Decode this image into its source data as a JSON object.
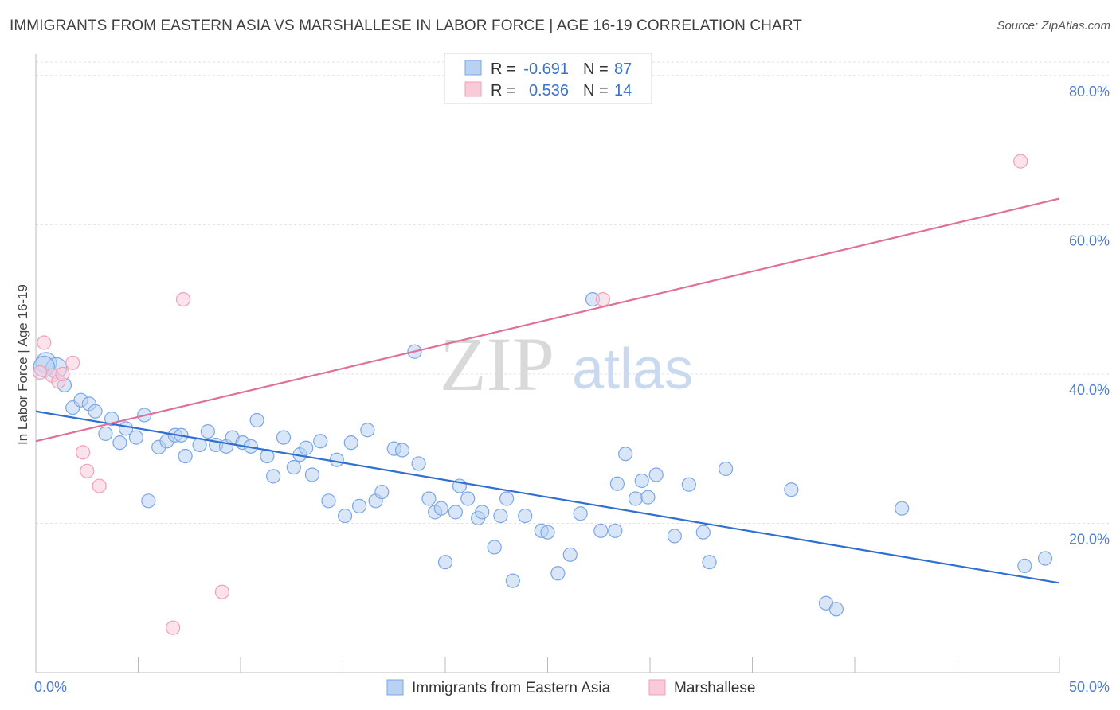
{
  "title": "IMMIGRANTS FROM EASTERN ASIA VS MARSHALLESE IN LABOR FORCE | AGE 16-19 CORRELATION CHART",
  "source": "Source: ZipAtlas.com",
  "watermark": {
    "zip": "ZIP",
    "atlas": "atlas"
  },
  "chart_data": {
    "type": "scatter",
    "ylabel": "In Labor Force | Age 16-19",
    "xlim": [
      0,
      50
    ],
    "ylim": [
      0,
      82
    ],
    "x_tick_labels": [
      {
        "value": 0,
        "label": "0.0%"
      },
      {
        "value": 50,
        "label": "50.0%"
      }
    ],
    "y_tick_labels": [
      {
        "value": 20,
        "label": "20.0%"
      },
      {
        "value": 40,
        "label": "40.0%"
      },
      {
        "value": 60,
        "label": "60.0%"
      },
      {
        "value": 80,
        "label": "80.0%"
      }
    ],
    "legend": {
      "r_label": "R =",
      "n_label": "N =",
      "entries": [
        {
          "r": "-0.691",
          "n": "87"
        },
        {
          "r": "0.536",
          "n": "14"
        }
      ]
    },
    "series": [
      {
        "name": "Immigrants from Eastern Asia",
        "color": "#7aa7e6",
        "fill": "#b9d1f3",
        "trend": {
          "x": [
            0,
            50
          ],
          "y": [
            35.0,
            12.0
          ],
          "color": "#2f6fd0"
        },
        "points": [
          [
            0.5,
            41.5
          ],
          [
            1.0,
            40.8
          ],
          [
            1.4,
            38.5
          ],
          [
            1.8,
            35.5
          ],
          [
            2.2,
            36.5
          ],
          [
            2.6,
            36.0
          ],
          [
            2.9,
            35.0
          ],
          [
            3.4,
            32.0
          ],
          [
            3.7,
            34.0
          ],
          [
            4.1,
            30.8
          ],
          [
            4.4,
            32.7
          ],
          [
            4.9,
            31.5
          ],
          [
            5.3,
            34.5
          ],
          [
            5.5,
            23.0
          ],
          [
            6.0,
            30.2
          ],
          [
            6.4,
            31.0
          ],
          [
            6.8,
            31.8
          ],
          [
            7.1,
            31.8
          ],
          [
            7.3,
            29.0
          ],
          [
            8.0,
            30.5
          ],
          [
            8.4,
            32.3
          ],
          [
            8.8,
            30.5
          ],
          [
            9.3,
            30.3
          ],
          [
            9.6,
            31.5
          ],
          [
            10.1,
            30.8
          ],
          [
            10.5,
            30.3
          ],
          [
            10.8,
            33.8
          ],
          [
            11.3,
            29.0
          ],
          [
            11.6,
            26.3
          ],
          [
            12.1,
            31.5
          ],
          [
            12.6,
            27.5
          ],
          [
            12.9,
            29.2
          ],
          [
            13.2,
            30.1
          ],
          [
            13.5,
            26.5
          ],
          [
            13.9,
            31.0
          ],
          [
            14.3,
            23.0
          ],
          [
            14.7,
            28.5
          ],
          [
            15.1,
            21.0
          ],
          [
            15.4,
            30.8
          ],
          [
            15.8,
            22.3
          ],
          [
            16.2,
            32.5
          ],
          [
            16.6,
            23.0
          ],
          [
            16.9,
            24.2
          ],
          [
            17.5,
            30.0
          ],
          [
            17.9,
            29.8
          ],
          [
            18.5,
            43.0
          ],
          [
            18.7,
            28.0
          ],
          [
            19.2,
            23.3
          ],
          [
            19.5,
            21.5
          ],
          [
            19.8,
            22.0
          ],
          [
            20.0,
            14.8
          ],
          [
            20.5,
            21.5
          ],
          [
            20.7,
            25.0
          ],
          [
            21.1,
            23.3
          ],
          [
            21.6,
            20.7
          ],
          [
            21.8,
            21.5
          ],
          [
            22.4,
            16.8
          ],
          [
            22.7,
            21.0
          ],
          [
            23.0,
            23.3
          ],
          [
            23.3,
            12.3
          ],
          [
            23.9,
            21.0
          ],
          [
            24.7,
            19.0
          ],
          [
            25.0,
            18.8
          ],
          [
            25.5,
            13.3
          ],
          [
            26.1,
            15.8
          ],
          [
            26.6,
            21.3
          ],
          [
            27.2,
            50.0
          ],
          [
            27.6,
            19.0
          ],
          [
            28.3,
            19.0
          ],
          [
            28.8,
            29.3
          ],
          [
            28.4,
            25.3
          ],
          [
            29.3,
            23.3
          ],
          [
            29.6,
            25.7
          ],
          [
            29.9,
            23.5
          ],
          [
            30.3,
            26.5
          ],
          [
            31.2,
            18.3
          ],
          [
            31.9,
            25.2
          ],
          [
            32.6,
            18.8
          ],
          [
            32.9,
            14.8
          ],
          [
            33.7,
            27.3
          ],
          [
            36.9,
            24.5
          ],
          [
            38.6,
            9.3
          ],
          [
            39.1,
            8.5
          ],
          [
            42.3,
            22.0
          ],
          [
            48.3,
            14.3
          ],
          [
            49.3,
            15.3
          ],
          [
            0.4,
            41.0
          ]
        ]
      },
      {
        "name": "Marshallese",
        "color": "#f0a0b8",
        "fill": "#f9cad8",
        "trend": {
          "x": [
            0,
            50
          ],
          "y": [
            31.0,
            63.5
          ],
          "color": "#e0709a"
        },
        "points": [
          [
            0.4,
            44.2
          ],
          [
            0.8,
            39.8
          ],
          [
            1.1,
            39.0
          ],
          [
            1.3,
            40.0
          ],
          [
            1.8,
            41.5
          ],
          [
            2.3,
            29.5
          ],
          [
            2.5,
            27.0
          ],
          [
            3.1,
            25.0
          ],
          [
            6.7,
            6.0
          ],
          [
            7.2,
            50.0
          ],
          [
            9.1,
            10.8
          ],
          [
            27.7,
            50.0
          ],
          [
            48.1,
            68.5
          ],
          [
            0.2,
            40.2
          ]
        ]
      }
    ]
  }
}
